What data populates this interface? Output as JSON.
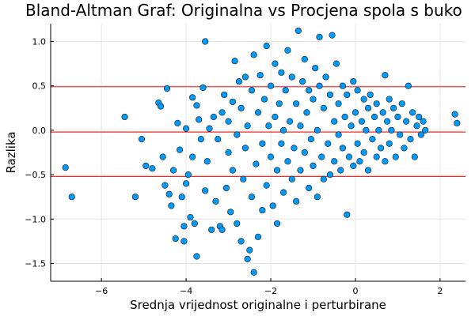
{
  "chart_data": {
    "type": "scatter",
    "title": "Bland-Altman Graf: Originalna vs Procjena spola s buko",
    "xlabel": "Srednja vrijednost originalne i perturbirane",
    "ylabel": "Razlika",
    "xlim": [
      -7.2,
      2.6
    ],
    "ylim": [
      -1.7,
      1.2
    ],
    "x_ticks": [
      -6,
      -4,
      -2,
      0,
      2
    ],
    "x_tick_labels": [
      "−6",
      "−4",
      "−2",
      "0",
      "2"
    ],
    "y_ticks": [
      -1.5,
      -1.0,
      -0.5,
      0.0,
      0.5,
      1.0
    ],
    "y_tick_labels": [
      "−1.5",
      "−1.0",
      "−0.5",
      "0.0",
      "0.5",
      "1.0"
    ],
    "grid": true,
    "legend": "none",
    "mean_difference": -0.02,
    "upper_limit": 0.49,
    "lower_limit": -0.52,
    "point_color": "#009AFA",
    "point_edge_color": "#1a1a1a",
    "line_color": "#E0302A",
    "points": [
      [
        -6.85,
        -0.42
      ],
      [
        -6.7,
        -0.75
      ],
      [
        -5.45,
        0.15
      ],
      [
        -5.2,
        -0.75
      ],
      [
        -5.05,
        -0.1
      ],
      [
        -4.95,
        -0.4
      ],
      [
        -4.8,
        -0.43
      ],
      [
        -4.65,
        0.31
      ],
      [
        -4.6,
        0.27
      ],
      [
        -4.55,
        -0.3
      ],
      [
        -4.5,
        -0.62
      ],
      [
        -4.45,
        0.47
      ],
      [
        -4.4,
        -0.72
      ],
      [
        -4.35,
        -0.85
      ],
      [
        -4.3,
        -0.45
      ],
      [
        -4.25,
        -1.22
      ],
      [
        -4.2,
        0.08
      ],
      [
        -4.15,
        -0.22
      ],
      [
        -4.1,
        -0.75
      ],
      [
        -4.05,
        -1.25
      ],
      [
        -4.05,
        -1.08
      ],
      [
        -4.0,
        -0.6
      ],
      [
        -4.0,
        0.02
      ],
      [
        -3.95,
        -0.5
      ],
      [
        -3.9,
        -0.98
      ],
      [
        -3.85,
        -0.3
      ],
      [
        -3.85,
        0.37
      ],
      [
        -3.8,
        -1.05
      ],
      [
        -3.75,
        0.28
      ],
      [
        -3.75,
        -1.42
      ],
      [
        -3.7,
        0.12
      ],
      [
        -3.65,
        -0.1
      ],
      [
        -3.6,
        0.48
      ],
      [
        -3.55,
        1.0
      ],
      [
        -3.55,
        -0.68
      ],
      [
        -3.5,
        -0.35
      ],
      [
        -3.45,
        0.02
      ],
      [
        -3.4,
        -1.12
      ],
      [
        -3.35,
        0.15
      ],
      [
        -3.3,
        -0.8
      ],
      [
        -3.25,
        -0.1
      ],
      [
        -3.2,
        -1.08
      ],
      [
        -3.15,
        -1.12
      ],
      [
        -3.15,
        0.2
      ],
      [
        -3.1,
        0.4
      ],
      [
        -3.05,
        -0.65
      ],
      [
        -3.0,
        -0.25
      ],
      [
        -3.0,
        0.1
      ],
      [
        -2.95,
        -0.92
      ],
      [
        -2.9,
        0.32
      ],
      [
        -2.9,
        -0.45
      ],
      [
        -2.85,
        0.78
      ],
      [
        -2.8,
        -0.05
      ],
      [
        -2.8,
        -1.05
      ],
      [
        -2.75,
        0.55
      ],
      [
        -2.7,
        -1.25
      ],
      [
        -2.7,
        0.25
      ],
      [
        -2.65,
        -0.55
      ],
      [
        -2.6,
        -0.2
      ],
      [
        -2.6,
        0.6
      ],
      [
        -2.55,
        -1.45
      ],
      [
        -2.55,
        0.05
      ],
      [
        -2.5,
        -1.35
      ],
      [
        -2.45,
        0.45
      ],
      [
        -2.45,
        -0.75
      ],
      [
        -2.4,
        -1.6
      ],
      [
        -2.4,
        0.85
      ],
      [
        -2.35,
        -0.38
      ],
      [
        -2.3,
        0.2
      ],
      [
        -2.3,
        -1.2
      ],
      [
        -2.25,
        0.62
      ],
      [
        -2.2,
        -0.15
      ],
      [
        -2.2,
        -0.9
      ],
      [
        -2.15,
        0.35
      ],
      [
        -2.1,
        0.95
      ],
      [
        -2.1,
        -0.62
      ],
      [
        -2.05,
        0.05
      ],
      [
        -2.0,
        -0.3
      ],
      [
        -2.0,
        0.5
      ],
      [
        -1.95,
        -0.85
      ],
      [
        -1.9,
        0.15
      ],
      [
        -1.9,
        0.75
      ],
      [
        -1.85,
        -0.45
      ],
      [
        -1.85,
        -1.05
      ],
      [
        -1.8,
        0.3
      ],
      [
        -1.75,
        -0.15
      ],
      [
        -1.75,
        0.65
      ],
      [
        -1.7,
        -0.7
      ],
      [
        -1.7,
        0.0
      ],
      [
        -1.65,
        0.45
      ],
      [
        -1.6,
        -0.35
      ],
      [
        -1.6,
        0.9
      ],
      [
        -1.55,
        0.1
      ],
      [
        -1.5,
        -0.55
      ],
      [
        -1.5,
        0.6
      ],
      [
        -1.45,
        -0.2
      ],
      [
        -1.4,
        0.3
      ],
      [
        -1.4,
        -0.8
      ],
      [
        -1.35,
        1.12
      ],
      [
        -1.3,
        0.05
      ],
      [
        -1.3,
        -0.45
      ],
      [
        -1.25,
        0.55
      ],
      [
        -1.2,
        -0.25
      ],
      [
        -1.2,
        0.8
      ],
      [
        -1.15,
        0.2
      ],
      [
        -1.1,
        -0.65
      ],
      [
        -1.1,
        0.45
      ],
      [
        -1.05,
        -0.1
      ],
      [
        -1.0,
        0.35
      ],
      [
        -1.0,
        -0.4
      ],
      [
        -0.95,
        0.7
      ],
      [
        -0.9,
        0.0
      ],
      [
        -0.9,
        -0.75
      ],
      [
        -0.85,
        0.5
      ],
      [
        -0.85,
        1.05
      ],
      [
        -0.8,
        -0.3
      ],
      [
        -0.75,
        0.25
      ],
      [
        -0.75,
        -0.55
      ],
      [
        -0.7,
        0.6
      ],
      [
        -0.65,
        -0.15
      ],
      [
        -0.6,
        0.4
      ],
      [
        -0.6,
        -0.5
      ],
      [
        -0.55,
        1.07
      ],
      [
        -0.5,
        0.1
      ],
      [
        -0.5,
        -0.35
      ],
      [
        -0.45,
        0.75
      ],
      [
        -0.4,
        -0.05
      ],
      [
        -0.4,
        0.3
      ],
      [
        -0.35,
        -0.45
      ],
      [
        -0.3,
        0.5
      ],
      [
        -0.3,
        -0.2
      ],
      [
        -0.25,
        0.15
      ],
      [
        -0.2,
        -0.95
      ],
      [
        -0.2,
        0.4
      ],
      [
        -0.15,
        -0.3
      ],
      [
        -0.1,
        0.05
      ],
      [
        -0.05,
        0.55
      ],
      [
        -0.05,
        -0.4
      ],
      [
        0.0,
        0.2
      ],
      [
        0.05,
        -0.15
      ],
      [
        0.05,
        0.45
      ],
      [
        0.1,
        -0.35
      ],
      [
        0.15,
        0.1
      ],
      [
        0.2,
        0.35
      ],
      [
        0.2,
        -0.25
      ],
      [
        0.25,
        0.0
      ],
      [
        0.3,
        0.25
      ],
      [
        0.3,
        -0.45
      ],
      [
        0.35,
        0.4
      ],
      [
        0.4,
        -0.1
      ],
      [
        0.45,
        0.15
      ],
      [
        0.5,
        -0.3
      ],
      [
        0.5,
        0.3
      ],
      [
        0.55,
        0.0
      ],
      [
        0.6,
        -0.2
      ],
      [
        0.65,
        0.2
      ],
      [
        0.7,
        0.62
      ],
      [
        0.7,
        -0.35
      ],
      [
        0.75,
        0.1
      ],
      [
        0.8,
        0.35
      ],
      [
        0.8,
        -0.15
      ],
      [
        0.85,
        0.0
      ],
      [
        0.9,
        0.25
      ],
      [
        0.95,
        -0.3
      ],
      [
        1.0,
        0.15
      ],
      [
        1.05,
        -0.05
      ],
      [
        1.1,
        0.3
      ],
      [
        1.15,
        -0.2
      ],
      [
        1.2,
        0.1
      ],
      [
        1.25,
        0.5
      ],
      [
        1.3,
        -0.1
      ],
      [
        1.35,
        0.2
      ],
      [
        1.4,
        -0.3
      ],
      [
        1.45,
        0.05
      ],
      [
        1.5,
        0.15
      ],
      [
        1.55,
        -0.05
      ],
      [
        1.6,
        0.1
      ],
      [
        1.65,
        0.0
      ],
      [
        2.35,
        0.18
      ],
      [
        2.4,
        0.08
      ]
    ]
  }
}
